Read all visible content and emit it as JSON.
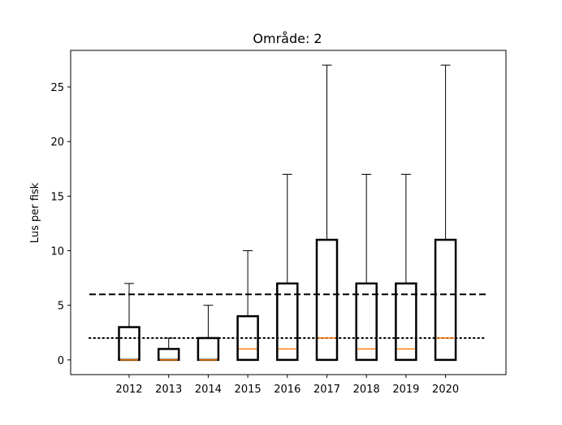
{
  "chart_data": {
    "type": "boxplot",
    "title": "Område: 2",
    "xlabel": "",
    "ylabel": "Lus per fisk",
    "categories": [
      "2012",
      "2013",
      "2014",
      "2015",
      "2016",
      "2017",
      "2018",
      "2019",
      "2020"
    ],
    "boxes": [
      {
        "label": "2012",
        "min": 0,
        "q1": 0,
        "median": 0,
        "q3": 3,
        "max": 7
      },
      {
        "label": "2013",
        "min": 0,
        "q1": 0,
        "median": 0,
        "q3": 1,
        "max": 2
      },
      {
        "label": "2014",
        "min": 0,
        "q1": 0,
        "median": 0,
        "q3": 2,
        "max": 5
      },
      {
        "label": "2015",
        "min": 0,
        "q1": 0,
        "median": 1,
        "q3": 4,
        "max": 10
      },
      {
        "label": "2016",
        "min": 0,
        "q1": 0,
        "median": 1,
        "q3": 7,
        "max": 17
      },
      {
        "label": "2017",
        "min": 0,
        "q1": 0,
        "median": 2,
        "q3": 11,
        "max": 27
      },
      {
        "label": "2018",
        "min": 0,
        "q1": 0,
        "median": 1,
        "q3": 7,
        "max": 17
      },
      {
        "label": "2019",
        "min": 0,
        "q1": 0,
        "median": 1,
        "q3": 7,
        "max": 17
      },
      {
        "label": "2020",
        "min": 0,
        "q1": 0,
        "median": 2,
        "q3": 11,
        "max": 27
      }
    ],
    "reference_lines": [
      {
        "y": 6,
        "style": "dashed",
        "color": "#000000"
      },
      {
        "y": 2,
        "style": "dotted",
        "color": "#000000"
      }
    ],
    "yticks": [
      0,
      5,
      10,
      15,
      20,
      25
    ],
    "ylim": [
      -1.35,
      28.35
    ],
    "grid": false,
    "colors": {
      "box": "#000000",
      "median": "#ff7f0e",
      "background": "#ffffff"
    }
  }
}
